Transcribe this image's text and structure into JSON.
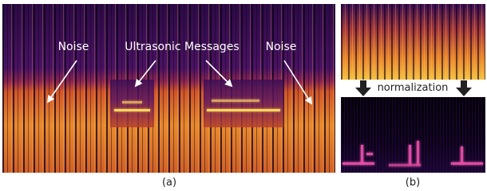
{
  "panel_a": {
    "labels": [
      "Noise",
      "Ultrasonic Messages",
      "Noise"
    ],
    "caption": "(a)"
  },
  "panel_b": {
    "label": "normalization",
    "caption": "(b)"
  }
}
